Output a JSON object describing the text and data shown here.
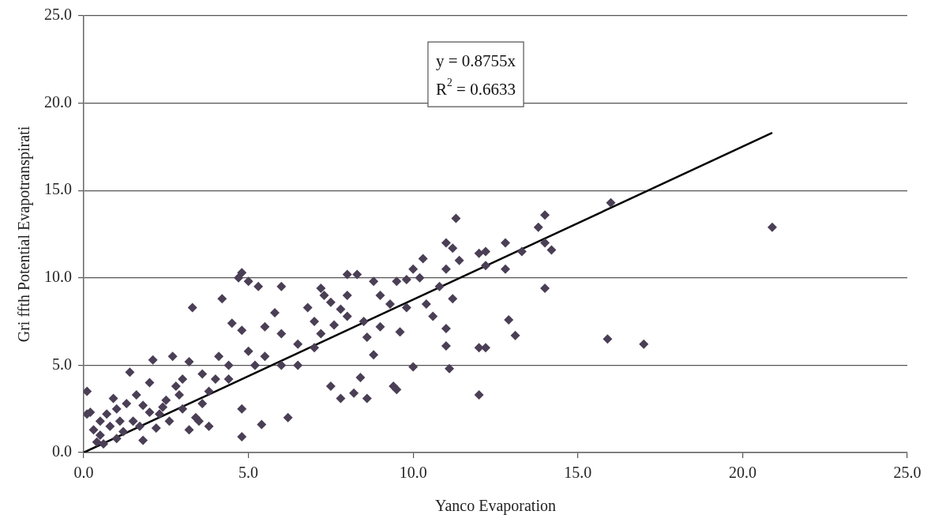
{
  "chart_data": {
    "type": "scatter",
    "xlabel": "Yanco Evaporation",
    "ylabel": "Gri ffth Potential Evapotranspirati",
    "annotations": [
      "y = 0.8755x",
      "R$^{2}$ = 0.6633"
    ],
    "xlim": [
      0,
      25
    ],
    "ylim": [
      0,
      25
    ],
    "xticks": [
      {
        "value": 0,
        "label": "0.0"
      },
      {
        "value": 5,
        "label": "5.0"
      },
      {
        "value": 10,
        "label": "10.0"
      },
      {
        "value": 15,
        "label": "15.0"
      },
      {
        "value": 20,
        "label": "20.0"
      },
      {
        "value": 25,
        "label": "25.0"
      }
    ],
    "yticks": [
      {
        "value": 0,
        "label": "0.0"
      },
      {
        "value": 5,
        "label": "5.0"
      },
      {
        "value": 10,
        "label": "10.0"
      },
      {
        "value": 15,
        "label": "15.0"
      },
      {
        "value": 20,
        "label": "20.0"
      },
      {
        "value": 25,
        "label": "25.0"
      }
    ],
    "grid": "y",
    "legend": false,
    "series": [
      {
        "marker": "diamond",
        "color": "#4a3f55",
        "x": [
          20.9,
          17.0,
          15.9,
          16.0,
          14.0,
          14.0,
          14.2,
          13.8,
          14.0,
          12.8,
          12.8,
          12.9,
          13.1,
          13.3,
          12.0,
          12.2,
          12.2,
          12.0,
          12.2,
          12.0,
          11.3,
          11.0,
          11.2,
          11.4,
          11.0,
          11.2,
          11.0,
          11.1,
          11.0,
          10.8,
          10.3,
          10.0,
          10.2,
          10.0,
          10.4,
          10.6,
          9.8,
          9.5,
          9.3,
          9.6,
          9.0,
          9.4,
          9.5,
          8.6,
          8.2,
          7.8,
          7.5,
          8.4,
          8.8,
          8.0,
          8.3,
          8.0,
          7.8,
          7.5,
          8.5,
          8.6,
          7.2,
          7.0,
          7.0,
          6.8,
          6.5,
          6.2,
          6.0,
          6.0,
          5.8,
          5.5,
          5.3,
          5.0,
          4.8,
          4.7,
          4.5,
          4.8,
          5.0,
          5.2,
          5.4,
          4.8,
          4.8,
          4.2,
          4.1,
          4.0,
          3.8,
          3.6,
          3.5,
          3.3,
          3.2,
          3.0,
          2.8,
          2.7,
          2.5,
          2.3,
          2.1,
          2.0,
          1.8,
          1.6,
          1.4,
          1.5,
          1.3,
          1.2,
          1.0,
          0.9,
          0.8,
          0.7,
          0.5,
          0.5,
          0.4,
          0.3,
          0.2,
          0.1,
          0.1,
          0.6,
          1.0,
          1.8,
          2.2,
          2.6,
          3.0,
          3.4,
          3.8,
          3.2,
          2.0,
          1.7,
          1.1,
          2.4,
          2.9,
          3.6,
          4.4,
          4.4,
          5.5,
          6.0,
          6.5,
          7.2,
          7.6,
          8.0,
          9.0,
          9.8,
          8.8,
          7.3
        ],
        "values": [
          12.9,
          6.2,
          6.5,
          14.3,
          13.6,
          12.0,
          11.6,
          12.9,
          9.4,
          12.0,
          10.5,
          7.6,
          6.7,
          11.5,
          11.4,
          11.5,
          10.7,
          3.3,
          6.0,
          6.0,
          13.4,
          12.0,
          11.7,
          11.0,
          10.5,
          8.8,
          6.1,
          4.8,
          7.1,
          9.5,
          11.1,
          10.5,
          10.0,
          4.9,
          8.5,
          7.8,
          9.9,
          9.8,
          8.5,
          6.9,
          9.0,
          3.8,
          3.6,
          3.1,
          3.4,
          3.1,
          3.8,
          4.3,
          5.6,
          10.2,
          10.2,
          9.0,
          8.2,
          8.6,
          7.5,
          6.6,
          9.4,
          7.5,
          6.0,
          8.3,
          5.0,
          2.0,
          9.5,
          6.8,
          8.0,
          7.2,
          9.5,
          9.8,
          10.3,
          10.0,
          7.4,
          7.0,
          5.8,
          5.0,
          1.6,
          0.9,
          2.5,
          8.8,
          5.5,
          4.2,
          3.5,
          2.8,
          1.8,
          8.3,
          5.2,
          4.2,
          3.8,
          5.5,
          3.0,
          2.2,
          5.3,
          4.0,
          2.7,
          3.3,
          4.6,
          1.8,
          2.8,
          1.2,
          2.5,
          3.1,
          1.5,
          2.2,
          1.0,
          1.8,
          0.6,
          1.3,
          2.3,
          3.5,
          2.2,
          0.5,
          0.8,
          0.7,
          1.4,
          1.8,
          2.5,
          2.0,
          1.5,
          1.3,
          2.3,
          1.5,
          1.8,
          2.6,
          3.3,
          4.5,
          4.2,
          5.0,
          5.5,
          5.0,
          6.2,
          6.8,
          7.3,
          7.8,
          7.2,
          8.3,
          9.8,
          9.0
        ]
      },
      {
        "type": "line",
        "marker": "none",
        "color": "#000000",
        "x": [
          0,
          20.9
        ],
        "values": [
          0,
          18.3
        ]
      }
    ]
  }
}
